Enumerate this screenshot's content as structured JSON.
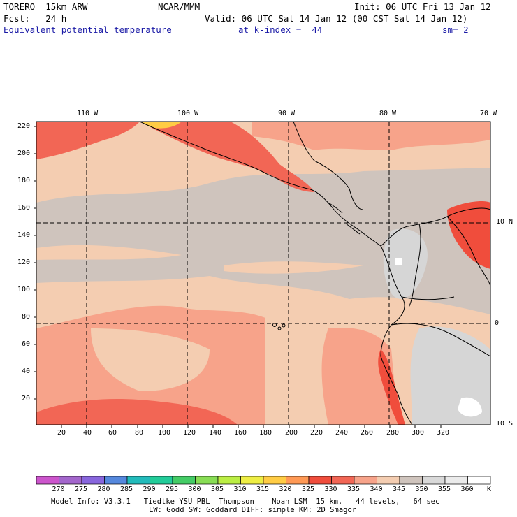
{
  "header": {
    "model": "TORERO  15km ARW",
    "org": "NCAR/MMM",
    "init": "Init: 06 UTC Fri 13 Jan 12",
    "fcst": "Fcst:   24 h",
    "valid": "Valid: 06 UTC Sat 14 Jan 12 (00 CST Sat 14 Jan 12)",
    "field": "Equivalent potential temperature",
    "level": "at k-index =  44",
    "smooth": "sm= 2"
  },
  "map": {
    "lon_labels": [
      "110 W",
      "100 W",
      "90 W",
      "80 W",
      "70 W"
    ],
    "lat_labels": [
      "10 N",
      "0",
      "10 S"
    ],
    "x_ticks": [
      "20",
      "40",
      "60",
      "80",
      "100",
      "120",
      "140",
      "160",
      "180",
      "200",
      "220",
      "240",
      "260",
      "280",
      "300",
      "320"
    ],
    "y_ticks": [
      "220",
      "200",
      "180",
      "160",
      "140",
      "120",
      "100",
      "80",
      "60",
      "40",
      "20"
    ]
  },
  "colorbar": {
    "labels": [
      "270",
      "275",
      "280",
      "285",
      "290",
      "295",
      "300",
      "305",
      "310",
      "315",
      "320",
      "325",
      "330",
      "335",
      "340",
      "345",
      "350",
      "355",
      "360"
    ],
    "unit": "K",
    "colors": [
      "#cc55cc",
      "#a366cc",
      "#8866dd",
      "#5588dd",
      "#22bbbb",
      "#22cc99",
      "#44cc66",
      "#88dd55",
      "#bbee44",
      "#eeee44",
      "#ffcc44",
      "#ff9955",
      "#f04d3c",
      "#f26655",
      "#f7a38a",
      "#f4cdb1",
      "#cfc4bd",
      "#d9d9d9",
      "#ebebeb",
      "#ffffff"
    ]
  },
  "footer": {
    "line1": "Model Info: V3.3.1   Tiedtke YSU PBL  Thompson    Noah LSM  15 km,   44 levels,   64 sec",
    "line2": "LW: Godd SW: Goddard DIFF: simple KM: 2D Smagor"
  }
}
